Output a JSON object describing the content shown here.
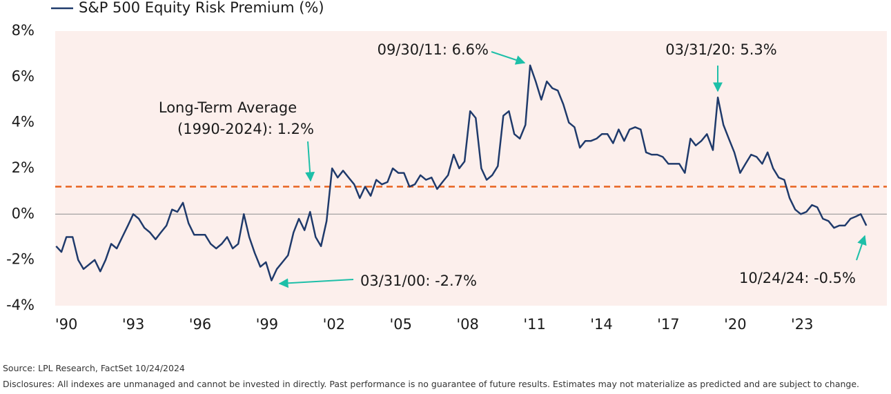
{
  "chart_data": {
    "type": "line",
    "xlim": [
      1989.5,
      2026.8
    ],
    "xticks": [
      {
        "value": 1990,
        "label": "'90"
      },
      {
        "value": 1993,
        "label": "'93"
      },
      {
        "value": 1996,
        "label": "'96"
      },
      {
        "value": 1999,
        "label": "'99"
      },
      {
        "value": 2002,
        "label": "'02"
      },
      {
        "value": 2005,
        "label": "'05"
      },
      {
        "value": 2008,
        "label": "'08"
      },
      {
        "value": 2011,
        "label": "'11"
      },
      {
        "value": 2014,
        "label": "'14"
      },
      {
        "value": 2017,
        "label": "'17"
      },
      {
        "value": 2020,
        "label": "'20"
      },
      {
        "value": 2023,
        "label": "'23"
      }
    ],
    "ylim": [
      -4,
      8
    ],
    "yticks": [
      {
        "value": -4,
        "label": "-4%"
      },
      {
        "value": -2,
        "label": "-2%"
      },
      {
        "value": 0,
        "label": "0%"
      },
      {
        "value": 2,
        "label": "2%"
      },
      {
        "value": 4,
        "label": "4%"
      },
      {
        "value": 6,
        "label": "6%"
      },
      {
        "value": 8,
        "label": "8%"
      }
    ],
    "x": [
      1989.54,
      1989.78,
      1990.0,
      1990.28,
      1990.53,
      1990.77,
      1991.02,
      1991.27,
      1991.52,
      1991.76,
      1992.01,
      1992.26,
      1992.51,
      1992.76,
      1993.0,
      1993.25,
      1993.5,
      1993.75,
      1994.0,
      1994.24,
      1994.49,
      1994.74,
      1994.98,
      1995.23,
      1995.48,
      1995.73,
      1995.98,
      1996.22,
      1996.47,
      1996.72,
      1996.97,
      1997.21,
      1997.46,
      1997.71,
      1997.96,
      1998.2,
      1998.45,
      1998.7,
      1998.95,
      1999.2,
      1999.44,
      1999.69,
      1999.94,
      2000.19,
      2000.43,
      2000.68,
      2000.93,
      2001.18,
      2001.42,
      2001.67,
      2001.92,
      2002.17,
      2002.41,
      2002.66,
      2002.91,
      2003.16,
      2003.4,
      2003.65,
      2003.9,
      2004.15,
      2004.4,
      2004.64,
      2004.89,
      2005.14,
      2005.39,
      2005.63,
      2005.88,
      2006.13,
      2006.38,
      2006.63,
      2006.87,
      2007.12,
      2007.37,
      2007.62,
      2007.86,
      2008.11,
      2008.36,
      2008.61,
      2008.85,
      2009.1,
      2009.35,
      2009.6,
      2009.85,
      2010.09,
      2010.34,
      2010.59,
      2010.8,
      2011.05,
      2011.3,
      2011.55,
      2011.8,
      2012.04,
      2012.29,
      2012.54,
      2012.79,
      2013.03,
      2013.28,
      2013.53,
      2013.78,
      2014.02,
      2014.27,
      2014.52,
      2014.77,
      2015.02,
      2015.26,
      2015.51,
      2015.76,
      2016.0,
      2016.25,
      2016.5,
      2016.75,
      2017.0,
      2017.24,
      2017.49,
      2017.74,
      2017.99,
      2018.23,
      2018.48,
      2018.73,
      2019.0,
      2019.22,
      2019.47,
      2019.71,
      2019.96,
      2020.22,
      2020.46,
      2020.71,
      2020.96,
      2021.21,
      2021.45,
      2021.7,
      2021.95,
      2022.2,
      2022.44,
      2022.69,
      2022.94,
      2023.19,
      2023.44,
      2023.68,
      2023.93,
      2024.18,
      2024.43,
      2024.67,
      2024.92,
      2025.17,
      2025.42,
      2025.63,
      2025.88
    ],
    "series": [
      {
        "name": "S&P 500 Equity Risk Premium (%)",
        "color": "#1f3a6b",
        "values": [
          -1.4,
          -1.65,
          -1.0,
          -1.0,
          -2.0,
          -2.4,
          -2.2,
          -2.0,
          -2.5,
          -2.0,
          -1.3,
          -1.5,
          -1.0,
          -0.5,
          0.0,
          -0.2,
          -0.6,
          -0.8,
          -1.1,
          -0.8,
          -0.5,
          0.2,
          0.1,
          0.5,
          -0.4,
          -0.9,
          -0.9,
          -0.9,
          -1.3,
          -1.5,
          -1.3,
          -1.0,
          -1.5,
          -1.3,
          0.0,
          -1.0,
          -1.7,
          -2.3,
          -2.1,
          -2.9,
          -2.4,
          -2.1,
          -1.8,
          -0.8,
          -0.2,
          -0.7,
          0.1,
          -1.0,
          -1.4,
          -0.3,
          2.0,
          1.6,
          1.9,
          1.6,
          1.3,
          0.7,
          1.2,
          0.8,
          1.5,
          1.3,
          1.4,
          2.0,
          1.8,
          1.8,
          1.2,
          1.3,
          1.7,
          1.5,
          1.6,
          1.1,
          1.4,
          1.7,
          2.6,
          2.0,
          2.3,
          4.5,
          4.2,
          2.0,
          1.5,
          1.7,
          2.1,
          4.3,
          4.5,
          3.5,
          3.3,
          3.9,
          6.5,
          5.8,
          5.0,
          5.8,
          5.5,
          5.4,
          4.8,
          4.0,
          3.8,
          2.9,
          3.2,
          3.2,
          3.3,
          3.5,
          3.5,
          3.1,
          3.7,
          3.2,
          3.7,
          3.8,
          3.7,
          2.7,
          2.6,
          2.6,
          2.5,
          2.2,
          2.2,
          2.2,
          1.8,
          3.3,
          3.0,
          3.2,
          3.5,
          2.8,
          5.1,
          3.9,
          3.3,
          2.7,
          1.8,
          2.2,
          2.6,
          2.5,
          2.2,
          2.7,
          2.0,
          1.6,
          1.5,
          0.7,
          0.2,
          0.0,
          0.1,
          0.4,
          0.3,
          -0.2,
          -0.3,
          -0.6,
          -0.5,
          -0.5,
          -0.2,
          -0.1,
          0.0,
          -0.5
        ]
      }
    ],
    "reference_line": {
      "value": 1.2,
      "color": "#e8621e",
      "label": [
        "Long-Term Average",
        "(1990-2024): 1.2%"
      ]
    },
    "annotations": [
      "09/30/11: 6.6%",
      "03/31/20: 5.3%",
      "03/31/00: -2.7%",
      "10/24/24: -0.5%"
    ],
    "source": "Source: LPL Research, FactSet 10/24/2024",
    "disclosures": "Disclosures: All indexes are unmanaged and cannot be invested in directly. Past performance is no guarantee of future results. Estimates may not materialize as predicted and are subject to change."
  }
}
